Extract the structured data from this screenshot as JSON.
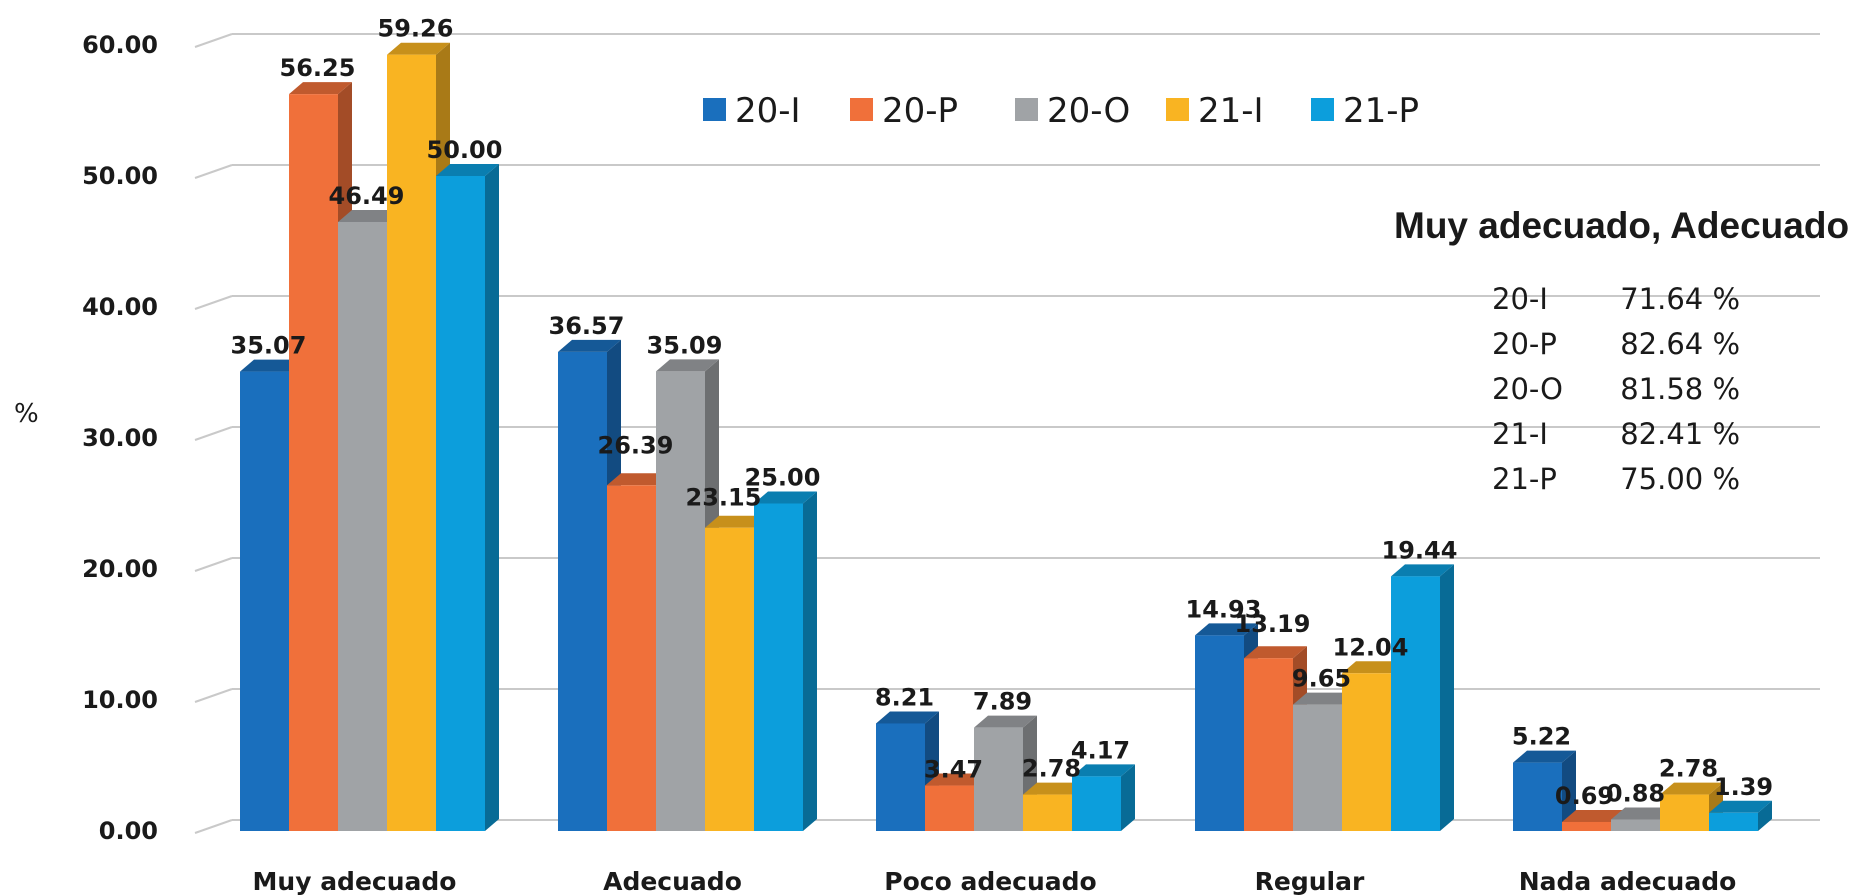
{
  "chart_data": {
    "type": "bar",
    "ylabel": "%",
    "xlabel": "",
    "ylim": [
      0,
      60
    ],
    "yticks": [
      "0.00",
      "10.00",
      "20.00",
      "30.00",
      "40.00",
      "50.00",
      "60.00"
    ],
    "categories": [
      "Muy adecuado",
      "Adecuado",
      "Poco adecuado",
      "Regular",
      "Nada adecuado"
    ],
    "series": [
      {
        "name": "20-I",
        "color": "#1a6fbd",
        "values": [
          35.07,
          36.57,
          8.21,
          14.93,
          5.22
        ],
        "labels": [
          "35.07",
          "36.57",
          "8.21",
          "14.93",
          "5.22"
        ]
      },
      {
        "name": "20-P",
        "color": "#f0703a",
        "values": [
          56.25,
          26.39,
          3.47,
          13.19,
          0.69
        ],
        "labels": [
          "56.25",
          "26.39",
          "3.47",
          "13.19",
          "0.69"
        ]
      },
      {
        "name": "20-O",
        "color": "#a0a3a6",
        "values": [
          46.49,
          35.09,
          7.89,
          9.65,
          0.88
        ],
        "labels": [
          "46.49",
          "35.09",
          "7.89",
          "9.65",
          "0.88"
        ]
      },
      {
        "name": "21-I",
        "color": "#f9b422",
        "values": [
          59.26,
          23.15,
          2.78,
          12.04,
          2.78
        ],
        "labels": [
          "59.26",
          "23.15",
          "2.78",
          "12.04",
          "2.78"
        ]
      },
      {
        "name": "21-P",
        "color": "#0c9edc",
        "values": [
          50.0,
          25.0,
          4.17,
          19.44,
          1.39
        ],
        "labels": [
          "50.00",
          "25.00",
          "4.17",
          "19.44",
          "1.39"
        ]
      }
    ],
    "legend_position": "top-center",
    "grid": true,
    "annotation": {
      "title": "Muy adecuado, Adecuado",
      "rows": [
        {
          "label": "20-I",
          "value": "71.64 %"
        },
        {
          "label": "20-P",
          "value": "82.64 %"
        },
        {
          "label": "20-O",
          "value": "81.58 %"
        },
        {
          "label": "21-I",
          "value": "82.41 %"
        },
        {
          "label": "21-P",
          "value": "75.00 %"
        }
      ]
    }
  }
}
